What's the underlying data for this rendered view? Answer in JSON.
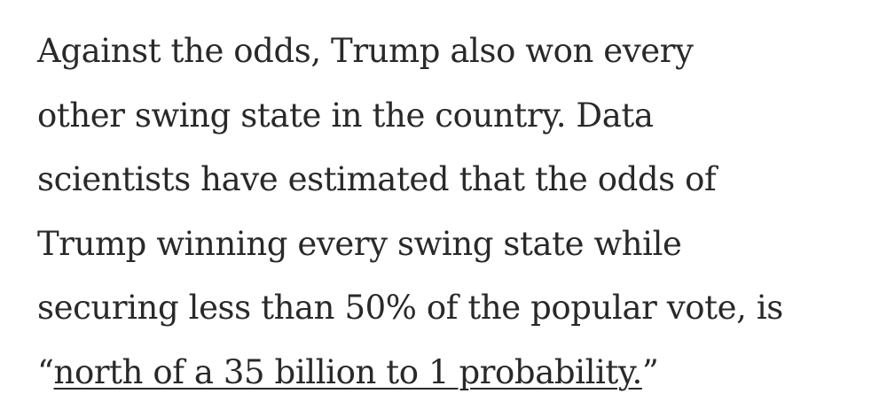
{
  "article": {
    "lines": [
      "Against the odds, Trump also won every",
      "other swing state in the country. Data",
      "scientists have estimated that the odds of",
      "Trump winning every swing state while",
      "securing less than 50% of the popular vote, is"
    ],
    "open_quote": "“",
    "link_text": "north of a 35 billion to 1 probability.",
    "close_quote": "”"
  }
}
